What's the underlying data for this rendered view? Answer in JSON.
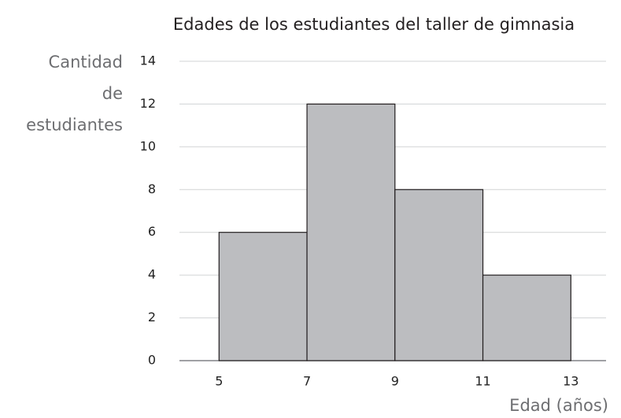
{
  "chart_data": {
    "type": "histogram",
    "title": "Edades de los estudiantes del taller de gimnasia",
    "x_label": "Edad (años)",
    "y_label": "Cantidad de estudiantes",
    "bins": [
      5,
      7,
      9,
      11,
      13
    ],
    "values": [
      6,
      12,
      8,
      4
    ],
    "color": "#bcbdc0",
    "xlim": [
      4.1,
      13.8
    ],
    "xticks": [
      5,
      7,
      9,
      11,
      13
    ],
    "ylim": [
      0,
      14
    ],
    "yticks": [
      0,
      2,
      4,
      6,
      8,
      10,
      12,
      14
    ],
    "grid": true
  }
}
